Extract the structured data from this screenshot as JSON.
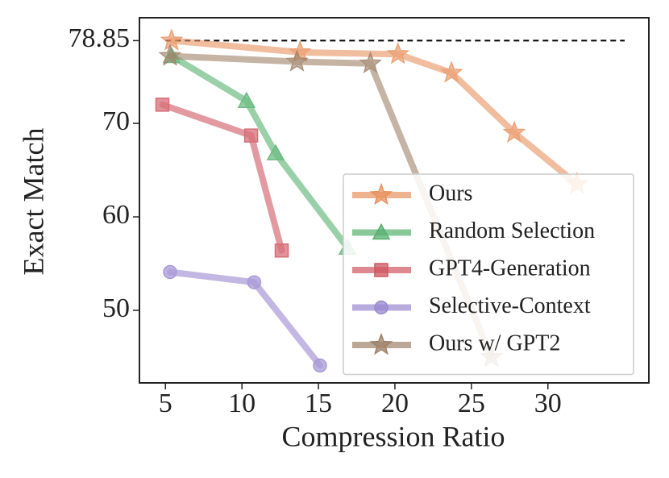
{
  "chart_data": {
    "type": "line",
    "xlabel": "Compression Ratio",
    "ylabel": "Exact Match",
    "xlim": [
      3.3,
      36.6
    ],
    "ylim": [
      42.24,
      81.3
    ],
    "xticks": [
      5,
      10,
      15,
      20,
      25,
      30
    ],
    "yticks": [
      50,
      60,
      70,
      78.85
    ],
    "reference_line": 78.85,
    "legend": "lower right",
    "series": [
      {
        "name": "Ours",
        "color": "#e8925f",
        "marker": "star",
        "x": [
          5.4,
          13.8,
          20.2,
          23.7,
          27.8,
          31.9
        ],
        "values": [
          78.85,
          77.6,
          77.4,
          75.4,
          69.0,
          63.5
        ]
      },
      {
        "name": "Random Selection",
        "color": "#55b06e",
        "marker": "triangle",
        "x": [
          5.4,
          10.3,
          12.2,
          16.9
        ],
        "values": [
          77.2,
          72.4,
          66.8,
          56.7
        ]
      },
      {
        "name": "GPT4-Generation",
        "color": "#d05560",
        "marker": "square",
        "x": [
          4.8,
          10.6,
          12.6
        ],
        "values": [
          72.0,
          68.7,
          56.4
        ]
      },
      {
        "name": "Selective-Context",
        "color": "#9a88d0",
        "marker": "circle",
        "x": [
          5.3,
          10.8,
          15.1
        ],
        "values": [
          54.1,
          53.0,
          44.1
        ]
      },
      {
        "name": "Ours w/ GPT2",
        "color": "#9e8168",
        "marker": "star",
        "x": [
          5.3,
          13.6,
          18.4,
          26.3
        ],
        "values": [
          77.2,
          76.6,
          76.4,
          45.0
        ]
      }
    ]
  }
}
